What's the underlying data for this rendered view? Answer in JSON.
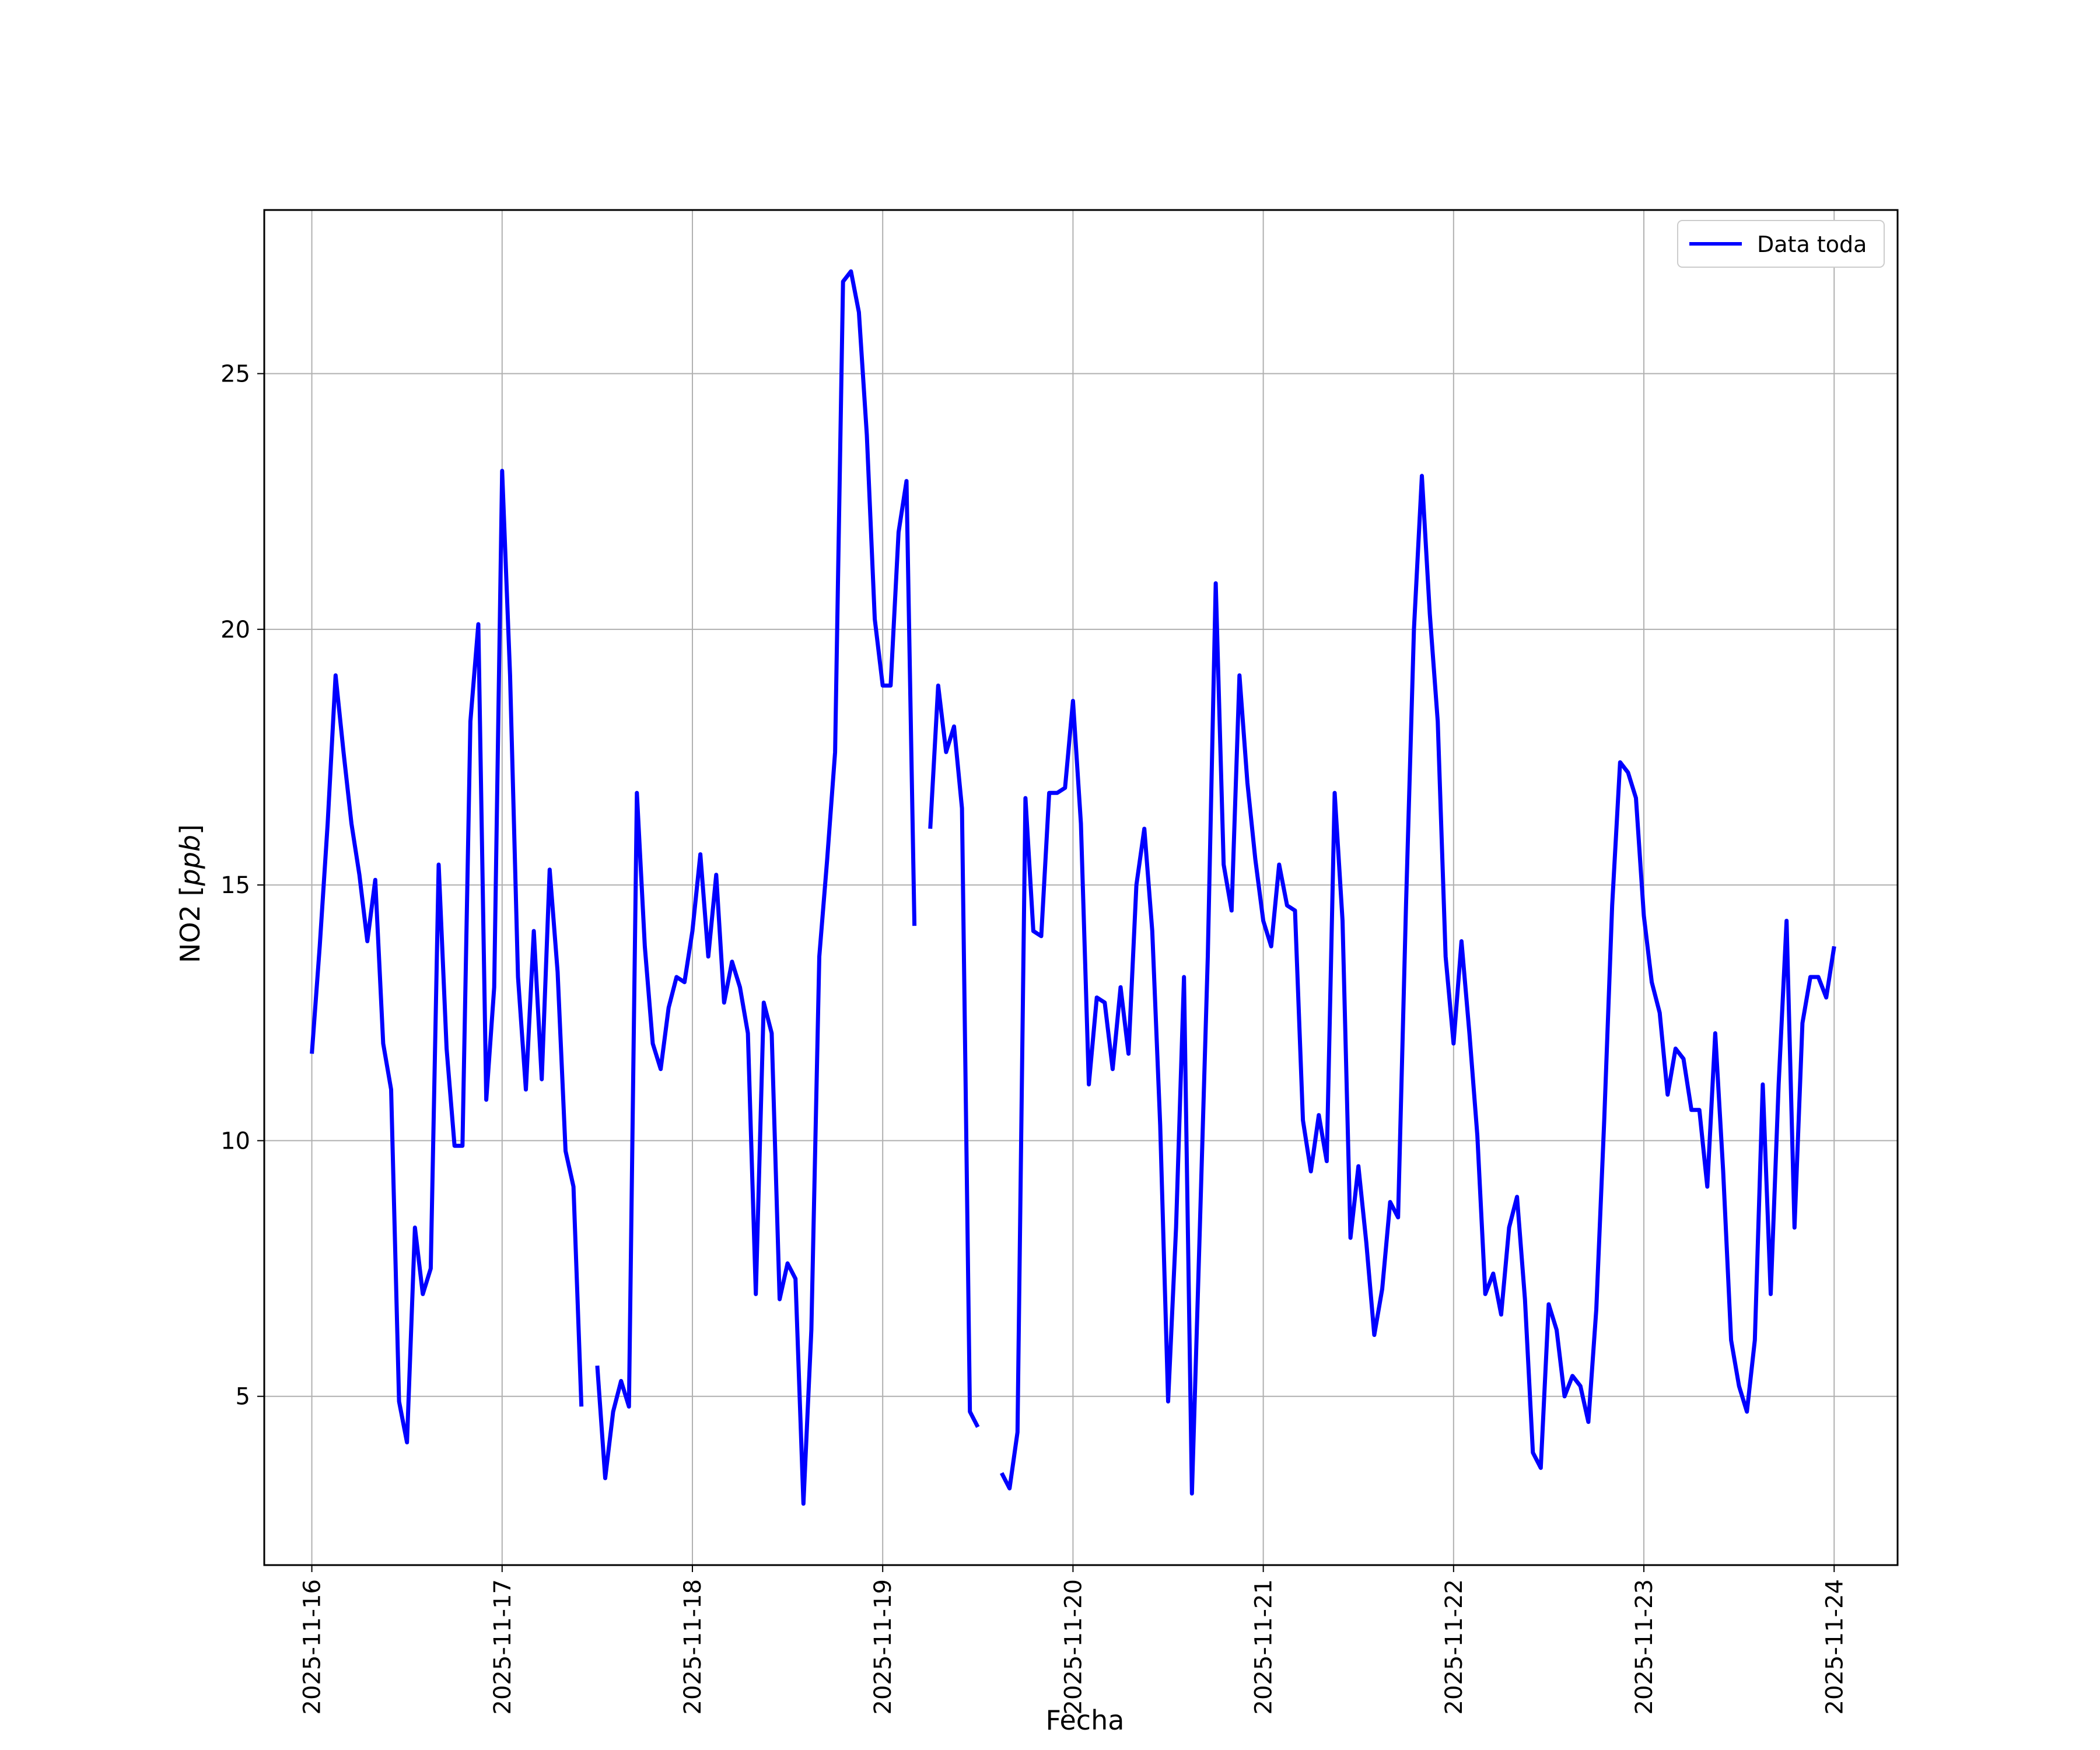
{
  "chart_data": {
    "type": "line",
    "title": "",
    "xlabel": "Fecha",
    "ylabel_main": "NO2 [",
    "ylabel_unit": "ppb",
    "ylabel_close": "]",
    "x_tick_labels": [
      "2025-11-16",
      "2025-11-17",
      "2025-11-18",
      "2025-11-19",
      "2025-11-20",
      "2025-11-21",
      "2025-11-22",
      "2025-11-23",
      "2025-11-24"
    ],
    "y_tick_labels": [
      "5",
      "10",
      "15",
      "20",
      "25"
    ],
    "y_tick_values": [
      5,
      10,
      15,
      20,
      25
    ],
    "xlim": [
      "2025-11-15 18:00",
      "2025-11-24 08:00"
    ],
    "ylim": [
      1.7,
      28.2
    ],
    "grid": true,
    "legend_position": "top-right",
    "series": [
      {
        "name": "Data toda",
        "color": "#0000ff",
        "segments": [
          [
            [
              "2025-11-16 00:00",
              11.7
            ],
            [
              "2025-11-16 01:00",
              13.8
            ],
            [
              "2025-11-16 02:00",
              16.2
            ],
            [
              "2025-11-16 03:00",
              19.1
            ],
            [
              "2025-11-16 04:00",
              17.6
            ],
            [
              "2025-11-16 05:00",
              16.2
            ],
            [
              "2025-11-16 06:00",
              15.2
            ],
            [
              "2025-11-16 07:00",
              13.9
            ],
            [
              "2025-11-16 08:00",
              15.1
            ],
            [
              "2025-11-16 09:00",
              11.9
            ],
            [
              "2025-11-16 10:00",
              11.0
            ],
            [
              "2025-11-16 11:00",
              4.9
            ],
            [
              "2025-11-16 12:00",
              4.1
            ],
            [
              "2025-11-16 13:00",
              8.3
            ],
            [
              "2025-11-16 14:00",
              7.0
            ],
            [
              "2025-11-16 15:00",
              7.5
            ],
            [
              "2025-11-16 16:00",
              15.4
            ],
            [
              "2025-11-16 17:00",
              11.8
            ],
            [
              "2025-11-16 18:00",
              9.9
            ],
            [
              "2025-11-16 19:00",
              9.9
            ],
            [
              "2025-11-16 20:00",
              18.2
            ],
            [
              "2025-11-16 21:00",
              20.1
            ],
            [
              "2025-11-16 22:00",
              10.8
            ],
            [
              "2025-11-16 23:00",
              13.0
            ],
            [
              "2025-11-17 00:00",
              23.1
            ],
            [
              "2025-11-17 01:00",
              19.1
            ],
            [
              "2025-11-17 02:00",
              13.2
            ],
            [
              "2025-11-17 03:00",
              11.0
            ],
            [
              "2025-11-17 04:00",
              14.1
            ],
            [
              "2025-11-17 05:00",
              11.2
            ],
            [
              "2025-11-17 06:00",
              15.3
            ],
            [
              "2025-11-17 07:00",
              13.3
            ],
            [
              "2025-11-17 08:00",
              9.8
            ],
            [
              "2025-11-17 09:00",
              9.1
            ],
            [
              "2025-11-17 10:00",
              4.8
            ]
          ],
          [
            [
              "2025-11-17 12:00",
              5.6
            ],
            [
              "2025-11-17 13:00",
              3.4
            ],
            [
              "2025-11-17 14:00",
              4.7
            ],
            [
              "2025-11-17 15:00",
              5.3
            ],
            [
              "2025-11-17 16:00",
              4.8
            ],
            [
              "2025-11-17 17:00",
              16.8
            ],
            [
              "2025-11-17 18:00",
              13.8
            ],
            [
              "2025-11-17 19:00",
              11.9
            ],
            [
              "2025-11-17 20:00",
              11.4
            ],
            [
              "2025-11-17 21:00",
              12.6
            ],
            [
              "2025-11-17 22:00",
              13.2
            ],
            [
              "2025-11-17 23:00",
              13.1
            ],
            [
              "2025-11-18 00:00",
              14.1
            ],
            [
              "2025-11-18 01:00",
              15.6
            ],
            [
              "2025-11-18 02:00",
              13.6
            ],
            [
              "2025-11-18 03:00",
              15.2
            ],
            [
              "2025-11-18 04:00",
              12.7
            ],
            [
              "2025-11-18 05:00",
              13.5
            ],
            [
              "2025-11-18 06:00",
              13.0
            ],
            [
              "2025-11-18 07:00",
              12.1
            ],
            [
              "2025-11-18 08:00",
              7.0
            ],
            [
              "2025-11-18 09:00",
              12.7
            ],
            [
              "2025-11-18 10:00",
              12.1
            ],
            [
              "2025-11-18 11:00",
              6.9
            ],
            [
              "2025-11-18 12:00",
              7.6
            ],
            [
              "2025-11-18 13:00",
              7.3
            ],
            [
              "2025-11-18 14:00",
              2.9
            ],
            [
              "2025-11-18 15:00",
              6.3
            ],
            [
              "2025-11-18 16:00",
              13.6
            ],
            [
              "2025-11-18 17:00",
              15.5
            ],
            [
              "2025-11-18 18:00",
              17.6
            ],
            [
              "2025-11-18 19:00",
              26.8
            ],
            [
              "2025-11-18 20:00",
              27.0
            ],
            [
              "2025-11-18 21:00",
              26.2
            ],
            [
              "2025-11-18 22:00",
              23.8
            ],
            [
              "2025-11-18 23:00",
              20.2
            ],
            [
              "2025-11-19 00:00",
              18.9
            ],
            [
              "2025-11-19 01:00",
              18.9
            ],
            [
              "2025-11-19 02:00",
              21.9
            ],
            [
              "2025-11-19 03:00",
              22.9
            ],
            [
              "2025-11-19 04:00",
              14.2
            ]
          ],
          [
            [
              "2025-11-19 06:00",
              16.1
            ],
            [
              "2025-11-19 07:00",
              18.9
            ],
            [
              "2025-11-19 08:00",
              17.6
            ],
            [
              "2025-11-19 09:00",
              18.1
            ],
            [
              "2025-11-19 10:00",
              16.5
            ],
            [
              "2025-11-19 11:00",
              4.7
            ],
            [
              "2025-11-19 12:00",
              4.4
            ]
          ],
          [
            [
              "2025-11-19 15:00",
              3.5
            ],
            [
              "2025-11-19 16:00",
              3.2
            ],
            [
              "2025-11-19 17:00",
              4.3
            ],
            [
              "2025-11-19 18:00",
              16.7
            ],
            [
              "2025-11-19 19:00",
              14.1
            ],
            [
              "2025-11-19 20:00",
              14.0
            ],
            [
              "2025-11-19 21:00",
              16.8
            ],
            [
              "2025-11-19 22:00",
              16.8
            ],
            [
              "2025-11-19 23:00",
              16.9
            ],
            [
              "2025-11-20 00:00",
              18.6
            ],
            [
              "2025-11-20 01:00",
              16.2
            ],
            [
              "2025-11-20 02:00",
              11.1
            ],
            [
              "2025-11-20 03:00",
              12.8
            ],
            [
              "2025-11-20 04:00",
              12.7
            ],
            [
              "2025-11-20 05:00",
              11.4
            ],
            [
              "2025-11-20 06:00",
              13.0
            ],
            [
              "2025-11-20 07:00",
              11.7
            ],
            [
              "2025-11-20 08:00",
              15.0
            ],
            [
              "2025-11-20 09:00",
              16.1
            ],
            [
              "2025-11-20 10:00",
              14.1
            ],
            [
              "2025-11-20 11:00",
              10.3
            ],
            [
              "2025-11-20 12:00",
              4.9
            ],
            [
              "2025-11-20 13:00",
              8.3
            ],
            [
              "2025-11-20 14:00",
              13.2
            ],
            [
              "2025-11-20 15:00",
              3.1
            ],
            [
              "2025-11-20 16:00",
              8.3
            ],
            [
              "2025-11-20 17:00",
              13.6
            ],
            [
              "2025-11-20 18:00",
              20.9
            ],
            [
              "2025-11-20 19:00",
              15.4
            ],
            [
              "2025-11-20 20:00",
              14.5
            ],
            [
              "2025-11-20 21:00",
              19.1
            ],
            [
              "2025-11-20 22:00",
              17.0
            ],
            [
              "2025-11-20 23:00",
              15.5
            ],
            [
              "2025-11-21 00:00",
              14.3
            ],
            [
              "2025-11-21 01:00",
              13.8
            ],
            [
              "2025-11-21 02:00",
              15.4
            ],
            [
              "2025-11-21 03:00",
              14.6
            ],
            [
              "2025-11-21 04:00",
              14.5
            ],
            [
              "2025-11-21 05:00",
              10.4
            ],
            [
              "2025-11-21 06:00",
              9.4
            ],
            [
              "2025-11-21 07:00",
              10.5
            ],
            [
              "2025-11-21 08:00",
              9.6
            ],
            [
              "2025-11-21 09:00",
              16.8
            ],
            [
              "2025-11-21 10:00",
              14.3
            ],
            [
              "2025-11-21 11:00",
              8.1
            ],
            [
              "2025-11-21 12:00",
              9.5
            ],
            [
              "2025-11-21 13:00",
              8.0
            ],
            [
              "2025-11-21 14:00",
              6.2
            ],
            [
              "2025-11-21 15:00",
              7.1
            ],
            [
              "2025-11-21 16:00",
              8.8
            ],
            [
              "2025-11-21 17:00",
              8.5
            ],
            [
              "2025-11-21 18:00",
              14.6
            ],
            [
              "2025-11-21 19:00",
              20.0
            ],
            [
              "2025-11-21 20:00",
              23.0
            ],
            [
              "2025-11-21 21:00",
              20.3
            ],
            [
              "2025-11-21 22:00",
              18.2
            ],
            [
              "2025-11-21 23:00",
              13.6
            ],
            [
              "2025-11-22 00:00",
              11.9
            ],
            [
              "2025-11-22 01:00",
              13.9
            ],
            [
              "2025-11-22 02:00",
              12.1
            ],
            [
              "2025-11-22 03:00",
              10.1
            ],
            [
              "2025-11-22 04:00",
              7.0
            ],
            [
              "2025-11-22 05:00",
              7.4
            ],
            [
              "2025-11-22 06:00",
              6.6
            ],
            [
              "2025-11-22 07:00",
              8.3
            ],
            [
              "2025-11-22 08:00",
              8.9
            ],
            [
              "2025-11-22 09:00",
              6.9
            ],
            [
              "2025-11-22 10:00",
              3.9
            ],
            [
              "2025-11-22 11:00",
              3.6
            ],
            [
              "2025-11-22 12:00",
              6.8
            ],
            [
              "2025-11-22 13:00",
              6.3
            ],
            [
              "2025-11-22 14:00",
              5.0
            ],
            [
              "2025-11-22 15:00",
              5.4
            ],
            [
              "2025-11-22 16:00",
              5.2
            ],
            [
              "2025-11-22 17:00",
              4.5
            ],
            [
              "2025-11-22 18:00",
              6.7
            ],
            [
              "2025-11-22 19:00",
              10.4
            ],
            [
              "2025-11-22 20:00",
              14.6
            ],
            [
              "2025-11-22 21:00",
              17.4
            ],
            [
              "2025-11-22 22:00",
              17.2
            ],
            [
              "2025-11-22 23:00",
              16.7
            ],
            [
              "2025-11-23 00:00",
              14.4
            ],
            [
              "2025-11-23 01:00",
              13.1
            ],
            [
              "2025-11-23 02:00",
              12.5
            ],
            [
              "2025-11-23 03:00",
              10.9
            ],
            [
              "2025-11-23 04:00",
              11.8
            ],
            [
              "2025-11-23 05:00",
              11.6
            ],
            [
              "2025-11-23 06:00",
              10.6
            ],
            [
              "2025-11-23 07:00",
              10.6
            ],
            [
              "2025-11-23 08:00",
              9.1
            ],
            [
              "2025-11-23 09:00",
              12.1
            ],
            [
              "2025-11-23 10:00",
              9.4
            ],
            [
              "2025-11-23 11:00",
              6.1
            ],
            [
              "2025-11-23 12:00",
              5.2
            ],
            [
              "2025-11-23 13:00",
              4.7
            ],
            [
              "2025-11-23 14:00",
              6.1
            ],
            [
              "2025-11-23 15:00",
              11.1
            ],
            [
              "2025-11-23 16:00",
              7.0
            ],
            [
              "2025-11-23 17:00",
              11.1
            ],
            [
              "2025-11-23 18:00",
              14.3
            ],
            [
              "2025-11-23 19:00",
              8.3
            ],
            [
              "2025-11-23 20:00",
              12.3
            ],
            [
              "2025-11-23 21:00",
              13.2
            ],
            [
              "2025-11-23 22:00",
              13.2
            ],
            [
              "2025-11-23 23:00",
              12.8
            ],
            [
              "2025-11-24 00:00",
              13.8
            ]
          ]
        ]
      }
    ]
  }
}
